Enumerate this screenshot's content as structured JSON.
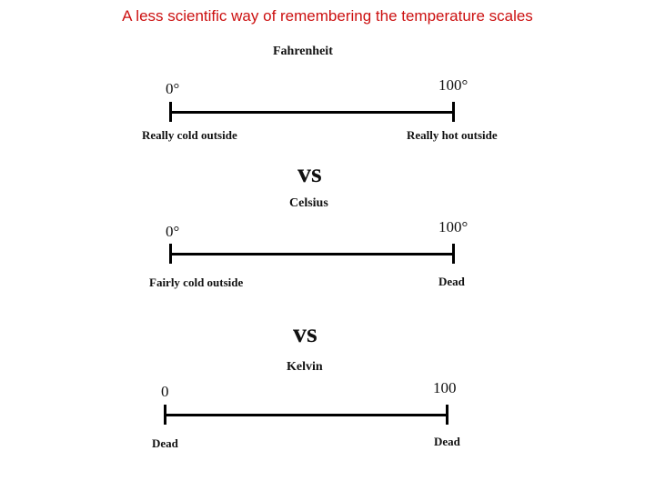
{
  "title": "A less scientific way of remembering the temperature scales",
  "separator": "vs",
  "scales": [
    {
      "name": "Fahrenheit",
      "left_value": "0°",
      "right_value": "100°",
      "left_label": "Really cold outside",
      "right_label": "Really hot outside"
    },
    {
      "name": "Celsius",
      "left_value": "0°",
      "right_value": "100°",
      "left_label": "Fairly cold outside",
      "right_label": "Dead"
    },
    {
      "name": "Kelvin",
      "left_value": "0",
      "right_value": "100",
      "left_label": "Dead",
      "right_label": "Dead"
    }
  ]
}
